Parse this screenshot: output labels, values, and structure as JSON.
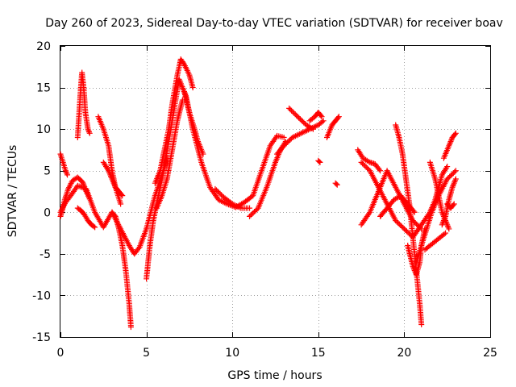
{
  "chart_data": {
    "type": "scatter",
    "title": "Day 260 of 2023, Sidereal Day-to-day VTEC variation (SDTVAR) for receiver boav",
    "xlabel": "GPS time / hours",
    "ylabel": "SDTVAR / TECUs",
    "xlim": [
      0,
      25
    ],
    "ylim": [
      -15,
      20
    ],
    "xticks": [
      0,
      5,
      10,
      15,
      20,
      25
    ],
    "yticks": [
      -15,
      -10,
      -5,
      0,
      5,
      10,
      15,
      20
    ],
    "grid": true,
    "legend": "none",
    "marker": "plus",
    "series": [
      {
        "name": "SDTVAR",
        "color": "#ff0000",
        "traces": [
          {
            "x": [
              0.0,
              0.3,
              0.6,
              1.0,
              1.5,
              2.0,
              2.5,
              3.0,
              3.5,
              4.0,
              4.3,
              4.6,
              5.0,
              5.5,
              6.0,
              6.5,
              6.9,
              7.3,
              7.7,
              8.2,
              8.7,
              9.2,
              9.7,
              10.2,
              10.7,
              11.2,
              11.7,
              12.2,
              12.6,
              13.0
            ],
            "y": [
              0.0,
              1.2,
              2.0,
              3.2,
              2.8,
              0.0,
              -1.8,
              0.0,
              -2.0,
              -4.0,
              -5.0,
              -4.2,
              -2.0,
              2.0,
              5.0,
              11.0,
              16.0,
              14.0,
              10.0,
              6.0,
              3.0,
              1.5,
              1.0,
              0.6,
              1.2,
              2.0,
              5.0,
              8.0,
              9.2,
              9.0
            ]
          },
          {
            "x": [
              0.0,
              0.1,
              0.25,
              0.45,
              0.7,
              1.0,
              1.3,
              1.5,
              1.7
            ],
            "y": [
              -0.5,
              0.2,
              1.5,
              2.8,
              3.8,
              4.2,
              3.6,
              2.5,
              1.6
            ]
          },
          {
            "x": [
              0.0,
              0.15,
              0.3,
              0.4
            ],
            "y": [
              7.0,
              6.0,
              5.0,
              4.5
            ]
          },
          {
            "x": [
              1.0,
              1.15,
              1.25,
              1.35,
              1.45,
              1.6,
              1.7
            ],
            "y": [
              9.0,
              14.0,
              16.8,
              15.0,
              12.0,
              10.0,
              9.5
            ]
          },
          {
            "x": [
              1.0,
              1.2,
              1.4,
              1.6,
              1.8,
              2.0
            ],
            "y": [
              0.5,
              0.2,
              -0.3,
              -1.0,
              -1.5,
              -1.8
            ]
          },
          {
            "x": [
              2.2,
              2.5,
              2.8,
              3.0,
              3.2,
              3.5
            ],
            "y": [
              11.5,
              10.0,
              8.0,
              5.0,
              3.0,
              1.0
            ]
          },
          {
            "x": [
              2.5,
              2.8,
              3.0,
              3.2,
              3.4,
              3.6
            ],
            "y": [
              6.0,
              5.0,
              4.0,
              3.0,
              2.5,
              2.0
            ]
          },
          {
            "x": [
              3.0,
              3.2,
              3.4,
              3.6,
              3.8,
              4.0,
              4.1
            ],
            "y": [
              0.0,
              -0.5,
              -2.0,
              -4.0,
              -7.0,
              -11.0,
              -13.8
            ]
          },
          {
            "x": [
              5.0,
              5.1,
              5.2,
              5.4,
              5.6,
              5.8,
              6.0,
              6.2
            ],
            "y": [
              -8.0,
              -6.0,
              -4.0,
              -1.0,
              1.0,
              3.0,
              5.0,
              6.5
            ]
          },
          {
            "x": [
              5.5,
              5.8,
              6.0,
              6.3,
              6.5,
              6.8,
              7.0,
              7.2,
              7.5,
              7.7
            ],
            "y": [
              3.5,
              5.0,
              7.0,
              10.0,
              13.0,
              16.5,
              18.4,
              17.8,
              16.5,
              15.0
            ]
          },
          {
            "x": [
              5.6,
              5.9,
              6.2,
              6.5,
              6.8,
              7.1
            ],
            "y": [
              0.5,
              2.0,
              4.0,
              7.5,
              11.0,
              13.5
            ]
          },
          {
            "x": [
              7.2,
              7.5,
              7.8,
              8.0,
              8.3
            ],
            "y": [
              14.5,
              12.0,
              10.0,
              8.5,
              7.0
            ]
          },
          {
            "x": [
              9.0,
              9.5,
              10.0,
              10.5,
              11.0
            ],
            "y": [
              2.8,
              1.8,
              1.0,
              0.5,
              0.5
            ]
          },
          {
            "x": [
              11.0,
              11.5,
              12.0,
              12.5,
              12.8,
              13.1
            ],
            "y": [
              -0.5,
              0.5,
              3.0,
              6.0,
              7.5,
              8.5
            ]
          },
          {
            "x": [
              12.6,
              13.0,
              13.5,
              14.0,
              14.5,
              15.0,
              15.3
            ],
            "y": [
              7.0,
              8.0,
              9.0,
              9.5,
              10.0,
              10.5,
              11.0
            ]
          },
          {
            "x": [
              13.3,
              13.8,
              14.3,
              14.7
            ],
            "y": [
              12.5,
              11.5,
              10.5,
              10.0
            ]
          },
          {
            "x": [
              14.5,
              14.8,
              15.0,
              15.2
            ],
            "y": [
              11.0,
              11.5,
              12.0,
              11.5
            ]
          },
          {
            "x": [
              15.5,
              15.8,
              16.0,
              16.2
            ],
            "y": [
              9.0,
              10.5,
              11.0,
              11.5
            ]
          },
          {
            "x": [
              15.0,
              15.1
            ],
            "y": [
              6.2,
              6.0
            ]
          },
          {
            "x": [
              16.0,
              16.1
            ],
            "y": [
              3.5,
              3.3
            ]
          },
          {
            "x": [
              17.5,
              18.0,
              18.5,
              19.0,
              19.5,
              20.0,
              20.5,
              21.0,
              21.5,
              22.0,
              22.5,
              23.0
            ],
            "y": [
              6.0,
              5.0,
              3.0,
              1.0,
              -1.0,
              -2.0,
              -3.0,
              -1.5,
              0.0,
              2.0,
              4.0,
              5.0
            ]
          },
          {
            "x": [
              17.3,
              17.6,
              18.0,
              18.3,
              18.6
            ],
            "y": [
              7.5,
              6.5,
              6.0,
              5.8,
              5.0
            ]
          },
          {
            "x": [
              17.5,
              18.0,
              18.5,
              19.0,
              19.5,
              20.0,
              20.5,
              21.0
            ],
            "y": [
              -1.5,
              0.0,
              2.5,
              5.0,
              3.0,
              1.0,
              -1.0,
              -2.0
            ]
          },
          {
            "x": [
              18.6,
              19.0,
              19.4,
              19.8,
              20.2,
              20.6
            ],
            "y": [
              -0.5,
              0.5,
              1.5,
              2.0,
              1.0,
              0.0
            ]
          },
          {
            "x": [
              19.5,
              19.7,
              19.9,
              20.1,
              20.3,
              20.5,
              20.7,
              20.9,
              21.0
            ],
            "y": [
              10.5,
              9.0,
              7.0,
              4.0,
              1.0,
              -3.0,
              -7.0,
              -11.0,
              -13.5
            ]
          },
          {
            "x": [
              20.2,
              20.5,
              20.7,
              20.9,
              21.0,
              21.2
            ],
            "y": [
              -4.0,
              -6.5,
              -7.5,
              -6.0,
              -4.0,
              -2.0
            ]
          },
          {
            "x": [
              20.7,
              21.0,
              21.3,
              21.6,
              22.0
            ],
            "y": [
              -6.0,
              -4.0,
              -2.0,
              0.0,
              2.0
            ]
          },
          {
            "x": [
              21.5,
              21.8,
              22.0,
              22.2,
              22.4,
              22.6
            ],
            "y": [
              6.0,
              4.0,
              2.0,
              0.0,
              -1.0,
              -2.0
            ]
          },
          {
            "x": [
              21.5,
              21.8,
              22.0,
              22.2,
              22.5
            ],
            "y": [
              0.0,
              1.5,
              3.0,
              4.5,
              5.5
            ]
          },
          {
            "x": [
              21.2,
              21.5,
              21.8,
              22.1,
              22.4
            ],
            "y": [
              -4.5,
              -4.0,
              -3.5,
              -3.0,
              -2.5
            ]
          },
          {
            "x": [
              22.2,
              22.4,
              22.6,
              22.8,
              23.0
            ],
            "y": [
              -1.5,
              -0.5,
              1.5,
              3.0,
              4.0
            ]
          },
          {
            "x": [
              22.3,
              22.6,
              22.8,
              23.0
            ],
            "y": [
              6.5,
              8.0,
              9.0,
              9.5
            ]
          },
          {
            "x": [
              22.5,
              22.7,
              22.9
            ],
            "y": [
              1.0,
              0.5,
              1.0
            ]
          }
        ]
      }
    ]
  }
}
